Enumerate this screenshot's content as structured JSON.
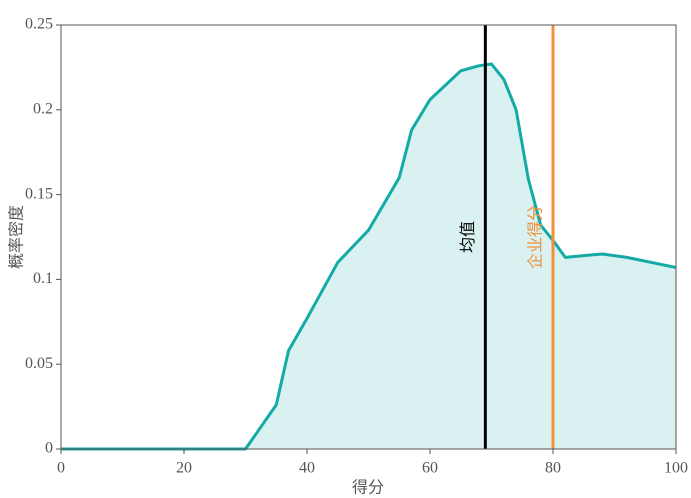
{
  "chart_data": {
    "type": "area",
    "x_label": "得分",
    "y_label": "概率密度",
    "x": [
      0,
      30,
      35,
      37,
      40,
      45,
      50,
      55,
      57,
      60,
      65,
      68,
      70,
      72,
      74,
      76,
      78,
      80,
      82,
      85,
      88,
      92,
      96,
      100
    ],
    "series": [
      {
        "name": "概率密度",
        "color": "#14aaa5",
        "values": [
          0,
          0,
          0.026,
          0.058,
          0.077,
          0.11,
          0.129,
          0.16,
          0.188,
          0.206,
          0.223,
          0.226,
          0.227,
          0.218,
          0.2,
          0.159,
          0.132,
          0.123,
          0.113,
          0.114,
          0.115,
          0.113,
          0.11,
          0.107
        ]
      }
    ],
    "fill_color": "#d9f2f1",
    "vlines": [
      {
        "label": "均值",
        "x": 69,
        "color": "#000000"
      },
      {
        "label": "企业得分",
        "x": 80,
        "color": "#f0923a"
      }
    ],
    "xlim": [
      0,
      100
    ],
    "xticks": [
      0,
      20,
      40,
      60,
      80,
      100
    ],
    "ylim": [
      0,
      0.25
    ],
    "yticks": [
      0,
      0.05,
      0.1,
      0.15,
      0.2,
      0.25
    ]
  }
}
